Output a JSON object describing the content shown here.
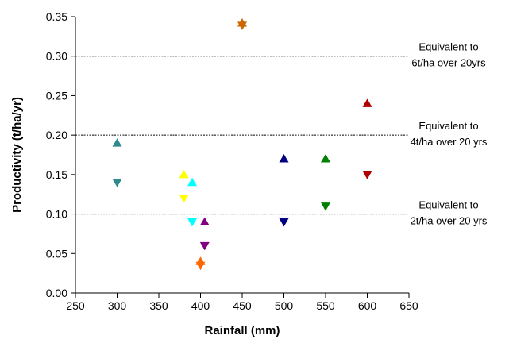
{
  "chart_data": {
    "type": "scatter",
    "title": "",
    "xlabel": "Rainfall (mm)",
    "ylabel": "Productivity (t/ha/yr)",
    "xlim": [
      250,
      650
    ],
    "ylim": [
      0,
      0.35
    ],
    "x_ticks": [
      250,
      300,
      350,
      400,
      450,
      500,
      550,
      600,
      650
    ],
    "y_ticks": [
      0.0,
      0.05,
      0.1,
      0.15,
      0.2,
      0.25,
      0.3,
      0.35
    ],
    "x_tick_labels": [
      "250",
      "300",
      "350",
      "400",
      "450",
      "500",
      "550",
      "600",
      "650"
    ],
    "y_tick_labels": [
      "0.00",
      "0.05",
      "0.10",
      "0.15",
      "0.20",
      "0.25",
      "0.30",
      "0.35"
    ],
    "grid": false,
    "legend": "none",
    "reference_lines": [
      {
        "y": 0.3,
        "label_lines": [
          "Equivalent to",
          "6t/ha over 20yrs"
        ]
      },
      {
        "y": 0.2,
        "label_lines": [
          "Equivalent to",
          "4t/ha over 20 yrs"
        ]
      },
      {
        "y": 0.1,
        "label_lines": [
          "Equivalent to",
          "2t/ha over 20 yrs"
        ]
      }
    ],
    "points": [
      {
        "x": 300,
        "y": 0.19,
        "marker": "triangle-up",
        "color": "#2E8B8B"
      },
      {
        "x": 300,
        "y": 0.14,
        "marker": "triangle-down",
        "color": "#2E8B8B"
      },
      {
        "x": 380,
        "y": 0.15,
        "marker": "triangle-up",
        "color": "#FFFF00"
      },
      {
        "x": 380,
        "y": 0.12,
        "marker": "triangle-down",
        "color": "#FFFF00"
      },
      {
        "x": 390,
        "y": 0.14,
        "marker": "triangle-up",
        "color": "#00FFFF"
      },
      {
        "x": 390,
        "y": 0.09,
        "marker": "triangle-down",
        "color": "#00FFFF"
      },
      {
        "x": 405,
        "y": 0.09,
        "marker": "triangle-up",
        "color": "#800080"
      },
      {
        "x": 405,
        "y": 0.06,
        "marker": "triangle-down",
        "color": "#800080"
      },
      {
        "x": 400,
        "y": 0.04,
        "marker": "triangle-up",
        "color": "#FF6600"
      },
      {
        "x": 400,
        "y": 0.035,
        "marker": "triangle-down",
        "color": "#FF6600"
      },
      {
        "x": 450,
        "y": 0.342,
        "marker": "triangle-up",
        "color": "#CC6600"
      },
      {
        "x": 450,
        "y": 0.339,
        "marker": "triangle-down",
        "color": "#CC6600"
      },
      {
        "x": 500,
        "y": 0.17,
        "marker": "triangle-up",
        "color": "#000080"
      },
      {
        "x": 500,
        "y": 0.09,
        "marker": "triangle-down",
        "color": "#000080"
      },
      {
        "x": 550,
        "y": 0.17,
        "marker": "triangle-up",
        "color": "#008000"
      },
      {
        "x": 550,
        "y": 0.11,
        "marker": "triangle-down",
        "color": "#008000"
      },
      {
        "x": 600,
        "y": 0.24,
        "marker": "triangle-up",
        "color": "#B00000"
      },
      {
        "x": 600,
        "y": 0.15,
        "marker": "triangle-down",
        "color": "#B00000"
      }
    ]
  }
}
